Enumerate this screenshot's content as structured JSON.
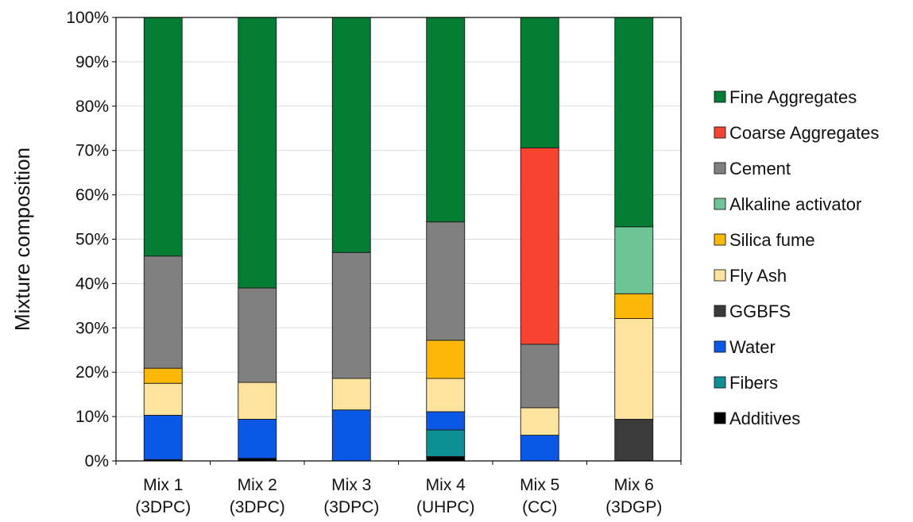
{
  "chart_data": {
    "type": "bar",
    "stacked": true,
    "title": "",
    "xlabel": "",
    "ylabel": "Mixture composition",
    "ylim": [
      0,
      100
    ],
    "y_tick_labels": [
      "0%",
      "10%",
      "20%",
      "30%",
      "40%",
      "50%",
      "60%",
      "70%",
      "80%",
      "90%",
      "100%"
    ],
    "grid": true,
    "legend_position": "right",
    "categories": [
      {
        "line1": "Mix 1",
        "line2": "(3DPC)"
      },
      {
        "line1": "Mix 2",
        "line2": "(3DPC)"
      },
      {
        "line1": "Mix 3",
        "line2": "(3DPC)"
      },
      {
        "line1": "Mix 4",
        "line2": "(UHPC)"
      },
      {
        "line1": "Mix 5",
        "line2": "(CC)"
      },
      {
        "line1": "Mix 6",
        "line2": "(3DGP)"
      }
    ],
    "series": [
      {
        "name": "Additives",
        "color": "#000000",
        "values": [
          0.3,
          0.6,
          0.0,
          1.0,
          0.0,
          0.0
        ]
      },
      {
        "name": "Fibers",
        "color": "#0e8f96",
        "values": [
          0.0,
          0.0,
          0.0,
          6.0,
          0.0,
          0.0
        ]
      },
      {
        "name": "Water",
        "color": "#0b57e6",
        "values": [
          10.0,
          8.8,
          11.5,
          4.1,
          5.8,
          0.0
        ]
      },
      {
        "name": "GGBFS",
        "color": "#3b3b3b",
        "values": [
          0.0,
          0.0,
          0.0,
          0.0,
          0.0,
          9.4
        ]
      },
      {
        "name": "Fly Ash",
        "color": "#fde49e",
        "values": [
          7.2,
          8.3,
          7.1,
          7.5,
          6.2,
          22.7
        ]
      },
      {
        "name": "Silica fume",
        "color": "#fbb809",
        "values": [
          3.4,
          0.0,
          0.0,
          8.6,
          0.0,
          5.6
        ]
      },
      {
        "name": "Alkaline activator",
        "color": "#6dc595",
        "values": [
          0.0,
          0.0,
          0.0,
          0.0,
          0.0,
          15.1
        ]
      },
      {
        "name": "Cement",
        "color": "#808080",
        "values": [
          25.3,
          21.3,
          28.4,
          26.7,
          14.3,
          0.0
        ]
      },
      {
        "name": "Coarse Aggregates",
        "color": "#f74431",
        "values": [
          0.0,
          0.0,
          0.0,
          0.0,
          44.3,
          0.0
        ]
      },
      {
        "name": "Fine Aggregates",
        "color": "#037d33",
        "values": [
          53.8,
          61.0,
          53.0,
          46.1,
          29.4,
          47.2
        ]
      }
    ],
    "legend_order": [
      "Fine Aggregates",
      "Coarse Aggregates",
      "Cement",
      "Alkaline activator",
      "Silica fume",
      "Fly Ash",
      "GGBFS",
      "Water",
      "Fibers",
      "Additives"
    ]
  }
}
